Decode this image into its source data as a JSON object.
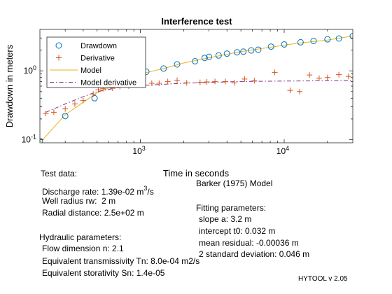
{
  "chart_data": {
    "type": "scatter",
    "title": "Interference test",
    "xlabel": "Time in seconds",
    "ylabel": "Drawdown in meters",
    "xscale": "log",
    "yscale": "log",
    "xlim": [
      200,
      30000
    ],
    "ylim": [
      0.09,
      4
    ],
    "grid": false,
    "legend_position": "top-left",
    "x_ticks": [
      {
        "value": 1000,
        "base": "10",
        "exp": "3"
      },
      {
        "value": 10000,
        "base": "10",
        "exp": "4"
      }
    ],
    "y_ticks": [
      {
        "value": 0.1,
        "base": "10",
        "exp": "-1"
      },
      {
        "value": 1,
        "base": "10",
        "exp": "0"
      }
    ],
    "series": [
      {
        "name": "Drawdown",
        "marker": "circle",
        "color": "#0072bd",
        "points": [
          [
            200,
            0.096
          ],
          [
            300,
            0.22
          ],
          [
            480,
            0.4
          ],
          [
            740,
            0.67
          ],
          [
            1100,
            0.97
          ],
          [
            1450,
            1.08
          ],
          [
            1800,
            1.24
          ],
          [
            2400,
            1.38
          ],
          [
            2800,
            1.54
          ],
          [
            3000,
            1.6
          ],
          [
            3500,
            1.67
          ],
          [
            4000,
            1.78
          ],
          [
            4700,
            1.86
          ],
          [
            5200,
            1.9
          ],
          [
            5900,
            1.98
          ],
          [
            6600,
            2.03
          ],
          [
            8100,
            2.25
          ],
          [
            10000,
            2.42
          ],
          [
            13000,
            2.6
          ],
          [
            16000,
            2.72
          ],
          [
            20000,
            2.87
          ],
          [
            24000,
            2.95
          ],
          [
            30000,
            3.2
          ]
        ]
      },
      {
        "name": "Derivative",
        "marker": "plus",
        "color": "#d95319",
        "points": [
          [
            220,
            0.24
          ],
          [
            250,
            0.25
          ],
          [
            300,
            0.28
          ],
          [
            350,
            0.33
          ],
          [
            400,
            0.37
          ],
          [
            470,
            0.46
          ],
          [
            510,
            0.53
          ],
          [
            550,
            0.55
          ],
          [
            640,
            0.56
          ],
          [
            720,
            0.59
          ],
          [
            830,
            0.6
          ],
          [
            1000,
            0.64
          ],
          [
            1200,
            0.66
          ],
          [
            1350,
            0.66
          ],
          [
            1550,
            0.7
          ],
          [
            1800,
            0.73
          ],
          [
            2100,
            0.67
          ],
          [
            2600,
            0.68
          ],
          [
            2900,
            0.69
          ],
          [
            3300,
            0.7
          ],
          [
            3900,
            0.7
          ],
          [
            4500,
            0.67
          ],
          [
            5300,
            0.76
          ],
          [
            6200,
            0.72
          ],
          [
            8600,
            0.95
          ],
          [
            11000,
            0.52
          ],
          [
            12800,
            0.5
          ],
          [
            15000,
            0.87
          ],
          [
            17500,
            0.78
          ],
          [
            20000,
            0.8
          ],
          [
            24000,
            0.88
          ],
          [
            28000,
            0.83
          ]
        ]
      },
      {
        "name": "Model",
        "line": "solid",
        "color": "#edb120",
        "points": [
          [
            200,
            0.09
          ],
          [
            300,
            0.23
          ],
          [
            500,
            0.48
          ],
          [
            700,
            0.64
          ],
          [
            1000,
            0.9
          ],
          [
            1500,
            1.1
          ],
          [
            2000,
            1.3
          ],
          [
            3000,
            1.55
          ],
          [
            5000,
            1.9
          ],
          [
            8000,
            2.2
          ],
          [
            12000,
            2.5
          ],
          [
            20000,
            2.8
          ],
          [
            30000,
            3.2
          ]
        ]
      },
      {
        "name": "Model derivative",
        "line": "dashdot",
        "color": "#7e2f8e",
        "points": [
          [
            220,
            0.25
          ],
          [
            300,
            0.33
          ],
          [
            400,
            0.42
          ],
          [
            500,
            0.5
          ],
          [
            700,
            0.57
          ],
          [
            1000,
            0.61
          ],
          [
            1500,
            0.64
          ],
          [
            2000,
            0.66
          ],
          [
            3000,
            0.68
          ],
          [
            5000,
            0.7
          ],
          [
            10000,
            0.71
          ],
          [
            30000,
            0.72
          ]
        ]
      }
    ]
  },
  "test_data": {
    "heading": "Test data:",
    "discharge_prefix": "Discharge rate: 1.39e-02 m",
    "discharge_exp": "3",
    "discharge_suffix": "/s",
    "well_radius": "Well radius rw:  2 m",
    "radial_distance": "Radial distance: 2.5e+02 m"
  },
  "hydraulic": {
    "heading": "Hydraulic parameters:",
    "flow_dimension": "Flow dimension n: 2.1",
    "transmissivity": "Equivalent transmissivity Tn: 8.0e-04 m2/s",
    "storativity": "Equivalent storativity Sn: 1.4e-05"
  },
  "model": {
    "heading": "Barker (1975) Model",
    "fitting_heading": "Fitting parameters:",
    "slope": "slope a: 3.2 m",
    "intercept": "intercept t0: 0.032 m",
    "residual": "mean residual: -0.00036 m",
    "std_dev": "2 standard deviation: 0.046 m"
  },
  "footer": {
    "version": "HYTOOL v 2.05"
  }
}
